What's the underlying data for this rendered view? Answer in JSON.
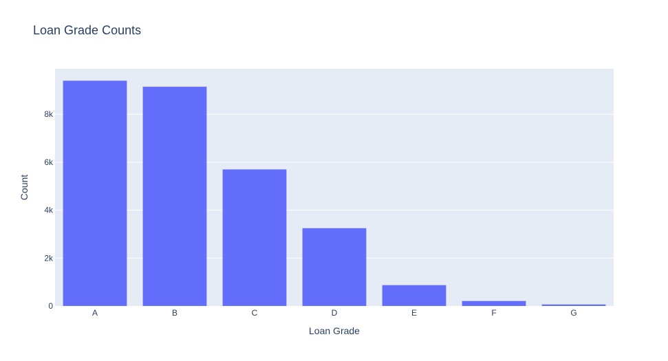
{
  "chart_data": {
    "type": "bar",
    "title": "Loan Grade Counts",
    "xlabel": "Loan Grade",
    "ylabel": "Count",
    "categories": [
      "A",
      "B",
      "C",
      "D",
      "E",
      "F",
      "G"
    ],
    "values": [
      9402,
      9151,
      5699,
      3248,
      870,
      209,
      64
    ],
    "ylim": [
      0,
      9900
    ],
    "yticks": [
      0,
      2000,
      4000,
      6000,
      8000
    ],
    "ytick_labels": [
      "0",
      "2k",
      "4k",
      "6k",
      "8k"
    ],
    "grid": true,
    "legend": "none",
    "colors": {
      "bar": "#636efa",
      "plot_bg": "#e5ecf6",
      "grid": "#ffffff",
      "text": "#2a3f5f"
    }
  }
}
